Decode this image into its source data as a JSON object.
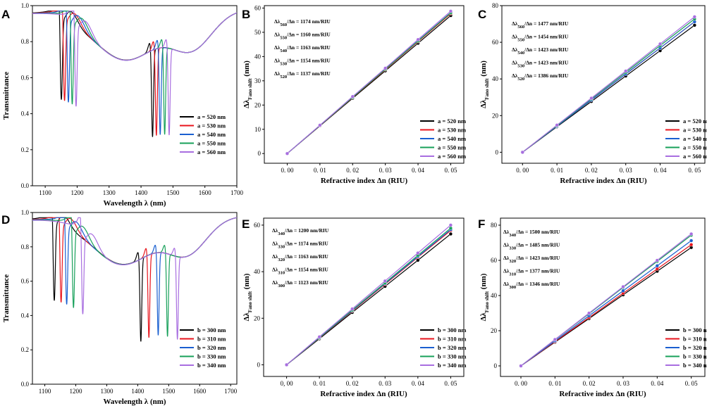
{
  "chart_data": [
    {
      "id": "A",
      "type": "line",
      "panel_label": "A",
      "xlabel": "Wavelength  λ (nm)",
      "ylabel": "Transmittance",
      "xlim": [
        1060,
        1700
      ],
      "ylim": [
        0.0,
        1.0
      ],
      "xticks": [
        1100,
        1200,
        1300,
        1400,
        1500,
        1600,
        1700
      ],
      "yticks": [
        0.0,
        0.2,
        0.4,
        0.6,
        0.8,
        1.0
      ],
      "legend_position": "center-right",
      "series": [
        {
          "name": "a = 520 nm",
          "color": "#000000",
          "dip1": 1150,
          "dip2": 1436
        },
        {
          "name": "a = 530 nm",
          "color": "#e8141c",
          "dip1": 1160,
          "dip2": 1448
        },
        {
          "name": "a = 540 nm",
          "color": "#1a5fd0",
          "dip1": 1172,
          "dip2": 1460
        },
        {
          "name": "a = 550 nm",
          "color": "#17a05a",
          "dip1": 1184,
          "dip2": 1474
        },
        {
          "name": "a = 560 nm",
          "color": "#a86ee0",
          "dip1": 1196,
          "dip2": 1488
        }
      ]
    },
    {
      "id": "B",
      "type": "line",
      "panel_label": "B",
      "xlabel": "Refractive index Δn (RIU)",
      "ylabel": "Δλ",
      "ylabel_sub": "Fano shift",
      "ylabel_unit": " (nm)",
      "xlim": [
        -0.007,
        0.054
      ],
      "ylim": [
        -4,
        61
      ],
      "x": [
        0.0,
        0.01,
        0.02,
        0.03,
        0.04,
        0.05
      ],
      "xticks": [
        0.0,
        0.01,
        0.02,
        0.03,
        0.04,
        0.05
      ],
      "xtick_labels": [
        "0. 00",
        "0. 01",
        "0. 02",
        "0. 03",
        "0. 04",
        "0. 05"
      ],
      "yticks": [
        0,
        10,
        20,
        30,
        40,
        50,
        60
      ],
      "legend_position": "bottom-right",
      "series": [
        {
          "name": "a = 520 nm",
          "color": "#000000",
          "values": [
            0,
            11.4,
            22.8,
            34.1,
            45.5,
            56.9
          ]
        },
        {
          "name": "a = 530 nm",
          "color": "#e8141c",
          "values": [
            0,
            11.5,
            23.1,
            34.6,
            46.2,
            57.7
          ]
        },
        {
          "name": "a = 540 nm",
          "color": "#1a5fd0",
          "values": [
            0,
            11.6,
            23.3,
            34.9,
            46.5,
            58.1
          ]
        },
        {
          "name": "a = 550 nm",
          "color": "#17a05a",
          "values": [
            0,
            11.6,
            23.2,
            34.8,
            46.4,
            58.0
          ]
        },
        {
          "name": "a = 560 nm",
          "color": "#a86ee0",
          "values": [
            0,
            11.7,
            23.5,
            35.2,
            47.0,
            58.7
          ]
        }
      ],
      "annotations": [
        {
          "pre": "Δλ",
          "sub": "560",
          "post": "/Δn = 1174 nm/RIU"
        },
        {
          "pre": "Δλ",
          "sub": "550",
          "post": "/Δn = 1160 nm/RIU"
        },
        {
          "pre": "Δλ",
          "sub": "540",
          "post": "/Δn = 1163 nm/RIU"
        },
        {
          "pre": "Δλ",
          "sub": "530",
          "post": "/Δn = 1154 nm/RIU"
        },
        {
          "pre": "Δλ",
          "sub": "520",
          "post": "/Δn = 1137 nm/RIU"
        }
      ]
    },
    {
      "id": "C",
      "type": "line",
      "panel_label": "C",
      "xlabel": "Refractive index Δn (RIU)",
      "ylabel": "Δλ",
      "ylabel_sub": "Fano shift",
      "ylabel_unit": " (nm)",
      "xlim": [
        -0.006,
        0.053
      ],
      "ylim": [
        -6,
        80
      ],
      "x": [
        0.0,
        0.01,
        0.02,
        0.03,
        0.04,
        0.05
      ],
      "xticks": [
        0.0,
        0.01,
        0.02,
        0.03,
        0.04,
        0.05
      ],
      "xtick_labels": [
        "0. 00",
        "0. 01",
        "0. 02",
        "0. 03",
        "0. 04",
        "0. 05"
      ],
      "yticks": [
        0,
        20,
        40,
        60,
        80
      ],
      "legend_position": "bottom-right",
      "series": [
        {
          "name": "a = 520 nm",
          "color": "#000000",
          "values": [
            0,
            13.9,
            27.7,
            41.6,
            55.4,
            69.3
          ]
        },
        {
          "name": "a = 530 nm",
          "color": "#e8141c",
          "values": [
            0,
            14.2,
            28.5,
            42.7,
            56.9,
            71.2
          ]
        },
        {
          "name": "a = 540 nm",
          "color": "#1a5fd0",
          "values": [
            0,
            14.2,
            28.5,
            42.7,
            56.9,
            71.2
          ]
        },
        {
          "name": "a = 550 nm",
          "color": "#17a05a",
          "values": [
            0,
            14.5,
            29.1,
            43.6,
            58.2,
            72.7
          ]
        },
        {
          "name": "a = 560 nm",
          "color": "#a86ee0",
          "values": [
            0,
            14.8,
            29.5,
            44.3,
            59.1,
            73.9
          ]
        }
      ],
      "annotations": [
        {
          "pre": "Δλ",
          "sub": "560",
          "post": "/Δn = 1477 nm/RIU"
        },
        {
          "pre": "Δλ",
          "sub": "550",
          "post": "/Δn = 1454 nm/RIU"
        },
        {
          "pre": "Δλ",
          "sub": "540",
          "post": "/Δn = 1423 nm/RIU"
        },
        {
          "pre": "Δλ",
          "sub": "530",
          "post": "/Δn = 1423 nm/RIU"
        },
        {
          "pre": "Δλ",
          "sub": "520",
          "post": "/Δn = 1386 nm/RIU"
        }
      ]
    },
    {
      "id": "D",
      "type": "line",
      "panel_label": "D",
      "xlabel": "Wavelength  λ (nm)",
      "ylabel": "Transmittance",
      "xlim": [
        1060,
        1720
      ],
      "ylim": [
        0.0,
        1.0
      ],
      "xticks": [
        1100,
        1200,
        1300,
        1400,
        1500,
        1600,
        1700
      ],
      "yticks": [
        0.0,
        0.2,
        0.4,
        0.6,
        0.8,
        1.0
      ],
      "legend_position": "bottom-right",
      "series": [
        {
          "name": "b = 300 nm",
          "color": "#000000",
          "dip1": 1130,
          "dip2": 1410
        },
        {
          "name": "b = 310 nm",
          "color": "#e8141c",
          "dip1": 1152,
          "dip2": 1436
        },
        {
          "name": "b = 320 nm",
          "color": "#1a5fd0",
          "dip1": 1170,
          "dip2": 1466
        },
        {
          "name": "b = 330 nm",
          "color": "#17a05a",
          "dip1": 1192,
          "dip2": 1496
        },
        {
          "name": "b = 340 nm",
          "color": "#a86ee0",
          "dip1": 1222,
          "dip2": 1528
        }
      ]
    },
    {
      "id": "E",
      "type": "line",
      "panel_label": "E",
      "xlabel": "Refractive index Δn (RIU)",
      "ylabel": "Δλ",
      "ylabel_sub": "Fano shift",
      "ylabel_unit": " (nm)",
      "xlim": [
        -0.007,
        0.054
      ],
      "ylim": [
        -5,
        63
      ],
      "x": [
        0.0,
        0.01,
        0.02,
        0.03,
        0.04,
        0.05
      ],
      "xticks": [
        0.0,
        0.01,
        0.02,
        0.03,
        0.04,
        0.05
      ],
      "xtick_labels": [
        "0, 00",
        "0. 01",
        "0. 02",
        "0. 03",
        "0. 04",
        "0. 05"
      ],
      "yticks": [
        0,
        20,
        40,
        60
      ],
      "legend_position": "bottom-right",
      "series": [
        {
          "name": "b = 300 nm",
          "color": "#000000",
          "values": [
            0,
            11.2,
            22.5,
            33.7,
            44.9,
            56.2
          ]
        },
        {
          "name": "b = 310 nm",
          "color": "#e8141c",
          "values": [
            0,
            11.5,
            23.1,
            34.6,
            46.2,
            57.7
          ]
        },
        {
          "name": "b = 320 nm",
          "color": "#1a5fd0",
          "values": [
            0,
            11.6,
            23.3,
            34.9,
            46.5,
            58.1
          ]
        },
        {
          "name": "b = 330 nm",
          "color": "#17a05a",
          "values": [
            0,
            11.7,
            23.5,
            35.2,
            47.0,
            58.7
          ]
        },
        {
          "name": "b = 340 nm",
          "color": "#a86ee0",
          "values": [
            0,
            12.0,
            24.0,
            36.0,
            48.0,
            60.0
          ]
        }
      ],
      "annotations": [
        {
          "pre": "Δλ",
          "sub": "340",
          "post": "/Δn = 1200 nm/RIU"
        },
        {
          "pre": "Δλ",
          "sub": "330",
          "post": "/Δn = 1174 nm/RIU"
        },
        {
          "pre": "Δλ",
          "sub": "320",
          "post": "/Δn = 1163 nm/RIU"
        },
        {
          "pre": "Δλ",
          "sub": "310",
          "post": "/Δn = 1154 nm/RIU"
        },
        {
          "pre": "Δλ",
          "sub": "300",
          "post": "/Δn = 1123 nm/RIU"
        }
      ]
    },
    {
      "id": "F",
      "type": "line",
      "panel_label": "F",
      "xlabel": "Refractive index Δn (RIU)",
      "ylabel": "Δλ",
      "ylabel_sub": "Fano shift",
      "ylabel_unit": " (nm)",
      "xlim": [
        -0.006,
        0.054
      ],
      "ylim": [
        -6,
        84
      ],
      "x": [
        0.0,
        0.01,
        0.02,
        0.03,
        0.04,
        0.05
      ],
      "xticks": [
        0.0,
        0.01,
        0.02,
        0.03,
        0.04,
        0.05
      ],
      "xtick_labels": [
        "0. 00",
        "0. 01",
        "0. 02",
        "0. 03",
        "0. 04",
        "0. 05"
      ],
      "yticks": [
        0,
        20,
        40,
        60,
        80
      ],
      "legend_position": "bottom-right",
      "series": [
        {
          "name": "b = 300 nm",
          "color": "#000000",
          "values": [
            0,
            13.5,
            26.9,
            40.4,
            53.8,
            67.3
          ]
        },
        {
          "name": "b = 310 nm",
          "color": "#e8141c",
          "values": [
            0,
            13.8,
            27.5,
            41.3,
            55.1,
            68.9
          ]
        },
        {
          "name": "b = 320 nm",
          "color": "#1a5fd0",
          "values": [
            0,
            14.2,
            28.5,
            42.7,
            56.9,
            71.2
          ]
        },
        {
          "name": "b = 330 nm",
          "color": "#17a05a",
          "values": [
            0,
            14.9,
            29.7,
            44.6,
            59.4,
            74.3
          ]
        },
        {
          "name": "b = 340 nm",
          "color": "#a86ee0",
          "values": [
            0,
            15.0,
            30.0,
            45.0,
            60.0,
            75.0
          ]
        }
      ],
      "annotations": [
        {
          "pre": "Δλ",
          "sub": "340",
          "post": "/Δn = 1500 nm/RIU"
        },
        {
          "pre": "Δλ",
          "sub": "330",
          "post": "/Δn = 1485 nm/RIU"
        },
        {
          "pre": "Δλ",
          "sub": "320",
          "post": "/Δn = 1423 nm/RIU"
        },
        {
          "pre": "Δλ",
          "sub": "310",
          "post": "/Δn = 1377 nm/RIU"
        },
        {
          "pre": "Δλ",
          "sub": "300",
          "post": "/Δn = 1346 nm/RIU"
        }
      ]
    }
  ]
}
